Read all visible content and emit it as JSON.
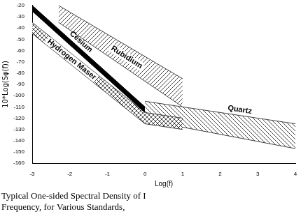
{
  "chart_data": {
    "type": "band",
    "title": [
      "Typical One-sided Spectral Density of I",
      "Frequency, for Various Standards,"
    ],
    "xlabel": "Log(f)",
    "ylabel": "10*Log(Sφ(f))",
    "xlim": [
      -3,
      4
    ],
    "xticks": [
      -3,
      -2,
      -1,
      0,
      1,
      2,
      3,
      4
    ],
    "ylim": [
      -160,
      -20
    ],
    "yticks": [
      -160,
      -150,
      -140,
      -130,
      -120,
      -110,
      -100,
      -90,
      -80,
      -70,
      -60,
      -50,
      -40,
      -30,
      -20
    ],
    "grid": false,
    "series": [
      {
        "name": "Rubidium",
        "color": "#444444",
        "x": [
          -2.3,
          1
        ],
        "upper": [
          -20,
          -85
        ],
        "lower": [
          -35,
          -110
        ]
      },
      {
        "name": "Cesium",
        "color": "#000000",
        "x": [
          -3,
          0
        ],
        "upper": [
          -20,
          -110
        ],
        "lower": [
          -25,
          -115
        ]
      },
      {
        "name": "Hydrogen Maser",
        "color": "#444444",
        "x": [
          -3,
          0,
          1
        ],
        "upper": [
          -35,
          -115,
          -120
        ],
        "lower": [
          -45,
          -125,
          -130
        ]
      },
      {
        "name": "Quartz",
        "color": "#444444",
        "x": [
          0,
          1,
          4
        ],
        "upper": [
          -105,
          -110,
          -125
        ],
        "lower": [
          -120,
          -128,
          -147
        ]
      }
    ]
  }
}
